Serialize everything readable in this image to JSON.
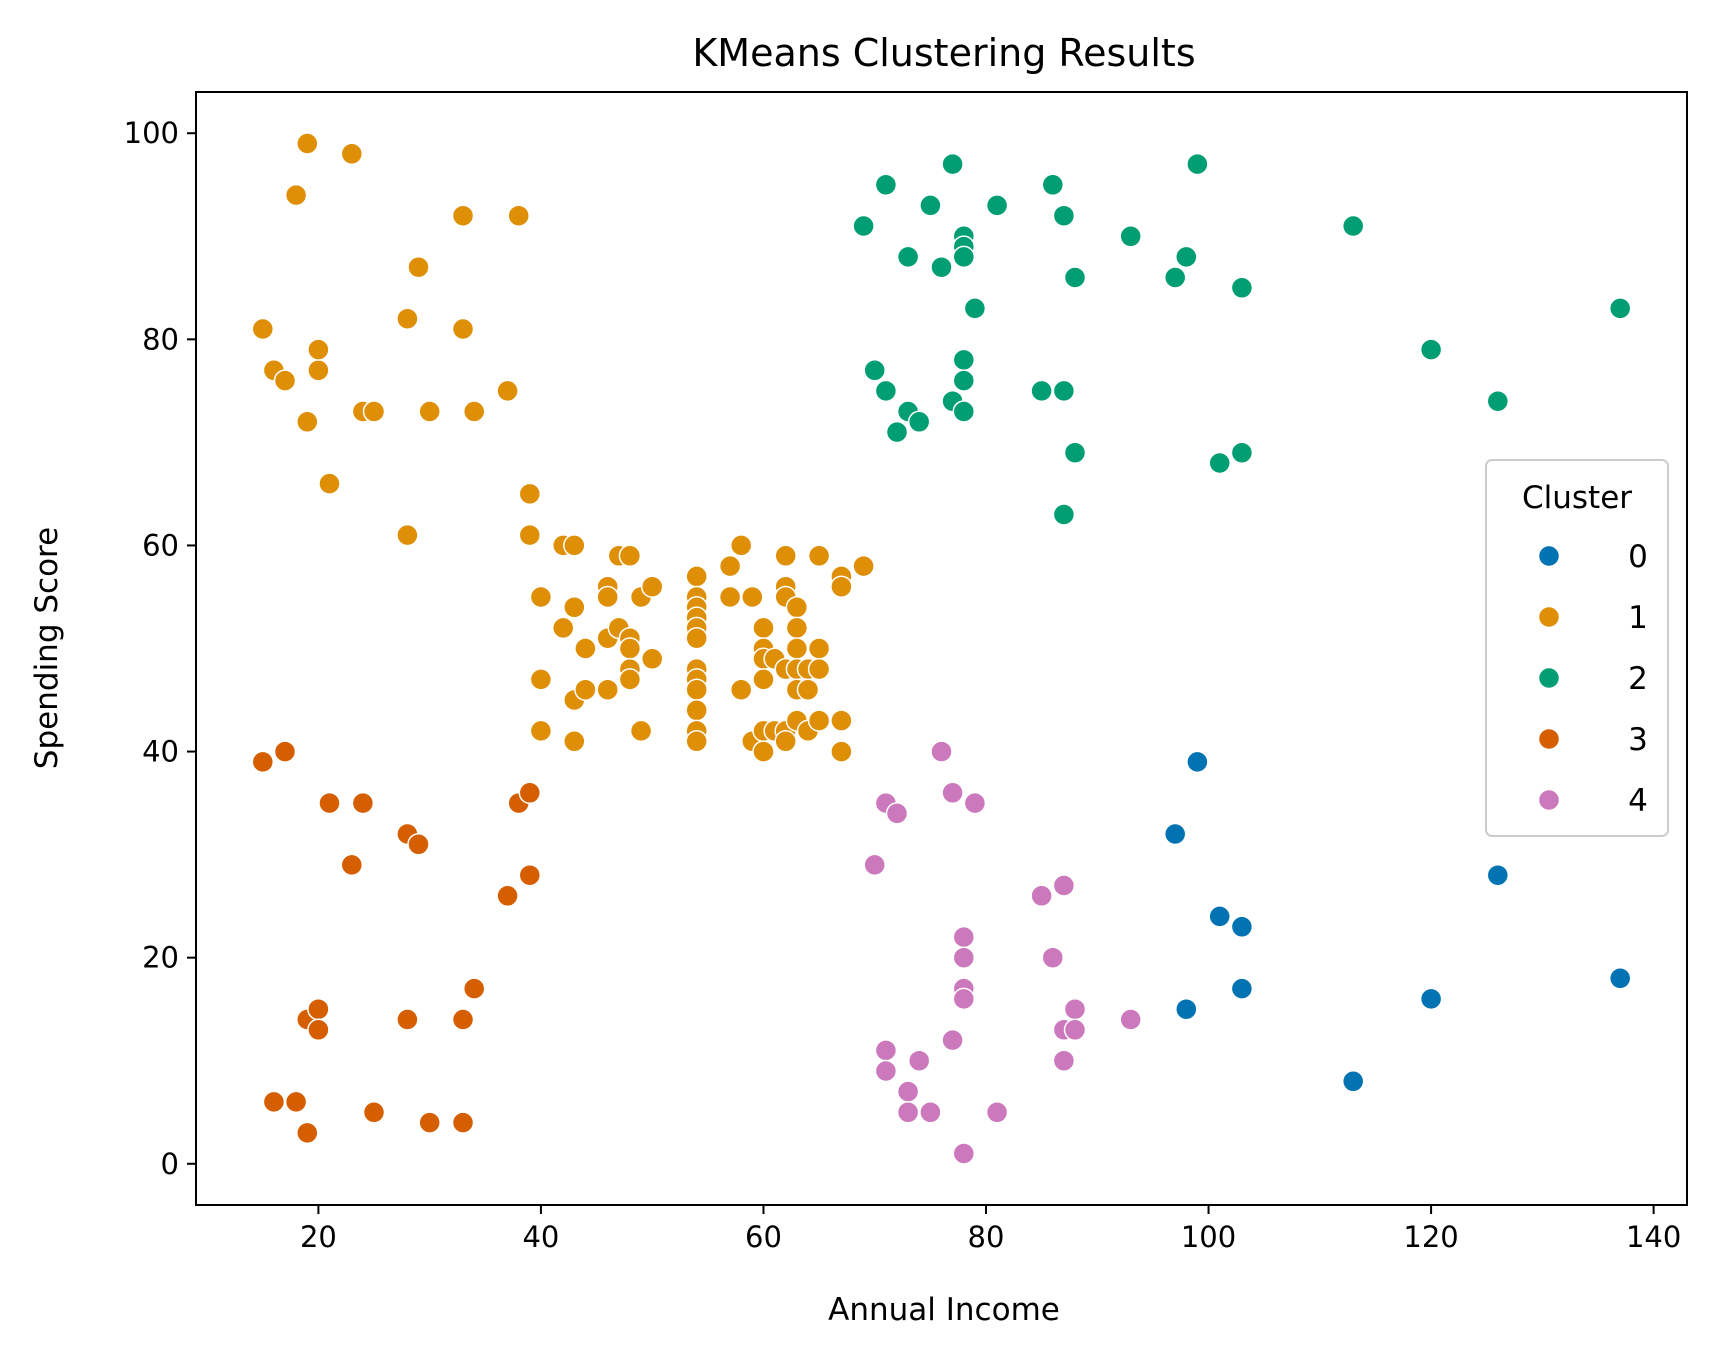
{
  "chart_data": {
    "type": "scatter",
    "title": "KMeans Clustering Results",
    "xlabel": "Annual Income",
    "ylabel": "Spending Score",
    "xlim": [
      9,
      143
    ],
    "ylim": [
      -4,
      104
    ],
    "xticks": [
      20,
      40,
      60,
      80,
      100,
      120,
      140
    ],
    "yticks": [
      0,
      20,
      40,
      60,
      80,
      100
    ],
    "grid": false,
    "legend": {
      "title": "Cluster",
      "placement": "right"
    },
    "series": [
      {
        "name": "0",
        "color": "#0173b2",
        "points": [
          [
            97,
            32
          ],
          [
            98,
            15
          ],
          [
            99,
            39
          ],
          [
            101,
            24
          ],
          [
            103,
            17
          ],
          [
            103,
            23
          ],
          [
            113,
            8
          ],
          [
            120,
            16
          ],
          [
            126,
            28
          ],
          [
            137,
            18
          ]
        ]
      },
      {
        "name": "1",
        "color": "#de8f05",
        "points": [
          [
            15,
            81
          ],
          [
            16,
            77
          ],
          [
            17,
            76
          ],
          [
            18,
            94
          ],
          [
            19,
            99
          ],
          [
            19,
            72
          ],
          [
            20,
            77
          ],
          [
            20,
            79
          ],
          [
            21,
            66
          ],
          [
            23,
            98
          ],
          [
            24,
            73
          ],
          [
            25,
            73
          ],
          [
            28,
            82
          ],
          [
            28,
            61
          ],
          [
            29,
            87
          ],
          [
            30,
            73
          ],
          [
            33,
            92
          ],
          [
            33,
            81
          ],
          [
            34,
            73
          ],
          [
            37,
            75
          ],
          [
            38,
            92
          ],
          [
            39,
            65
          ],
          [
            39,
            61
          ],
          [
            40,
            55
          ],
          [
            40,
            47
          ],
          [
            40,
            42
          ],
          [
            42,
            60
          ],
          [
            42,
            52
          ],
          [
            43,
            60
          ],
          [
            43,
            54
          ],
          [
            43,
            45
          ],
          [
            43,
            41
          ],
          [
            44,
            50
          ],
          [
            44,
            46
          ],
          [
            46,
            56
          ],
          [
            46,
            55
          ],
          [
            46,
            51
          ],
          [
            46,
            46
          ],
          [
            47,
            59
          ],
          [
            47,
            52
          ],
          [
            48,
            59
          ],
          [
            48,
            51
          ],
          [
            48,
            50
          ],
          [
            48,
            48
          ],
          [
            48,
            47
          ],
          [
            49,
            55
          ],
          [
            49,
            42
          ],
          [
            50,
            56
          ],
          [
            50,
            49
          ],
          [
            54,
            57
          ],
          [
            54,
            55
          ],
          [
            54,
            54
          ],
          [
            54,
            53
          ],
          [
            54,
            52
          ],
          [
            54,
            51
          ],
          [
            54,
            48
          ],
          [
            54,
            47
          ],
          [
            54,
            46
          ],
          [
            54,
            44
          ],
          [
            54,
            42
          ],
          [
            54,
            41
          ],
          [
            57,
            58
          ],
          [
            57,
            55
          ],
          [
            58,
            60
          ],
          [
            58,
            46
          ],
          [
            59,
            55
          ],
          [
            59,
            41
          ],
          [
            60,
            52
          ],
          [
            60,
            50
          ],
          [
            60,
            49
          ],
          [
            60,
            47
          ],
          [
            60,
            42
          ],
          [
            60,
            40
          ],
          [
            61,
            49
          ],
          [
            61,
            42
          ],
          [
            62,
            59
          ],
          [
            62,
            56
          ],
          [
            62,
            55
          ],
          [
            62,
            48
          ],
          [
            62,
            42
          ],
          [
            62,
            41
          ],
          [
            63,
            54
          ],
          [
            63,
            52
          ],
          [
            63,
            50
          ],
          [
            63,
            48
          ],
          [
            63,
            46
          ],
          [
            63,
            43
          ],
          [
            64,
            48
          ],
          [
            64,
            46
          ],
          [
            64,
            42
          ],
          [
            65,
            59
          ],
          [
            65,
            50
          ],
          [
            65,
            48
          ],
          [
            65,
            43
          ],
          [
            67,
            57
          ],
          [
            67,
            56
          ],
          [
            67,
            43
          ],
          [
            67,
            40
          ],
          [
            69,
            58
          ]
        ]
      },
      {
        "name": "2",
        "color": "#029e73",
        "points": [
          [
            69,
            91
          ],
          [
            70,
            77
          ],
          [
            71,
            95
          ],
          [
            71,
            75
          ],
          [
            72,
            71
          ],
          [
            73,
            88
          ],
          [
            73,
            73
          ],
          [
            74,
            72
          ],
          [
            75,
            93
          ],
          [
            76,
            87
          ],
          [
            77,
            97
          ],
          [
            77,
            74
          ],
          [
            78,
            90
          ],
          [
            78,
            89
          ],
          [
            78,
            88
          ],
          [
            78,
            78
          ],
          [
            78,
            76
          ],
          [
            78,
            73
          ],
          [
            79,
            83
          ],
          [
            81,
            93
          ],
          [
            85,
            75
          ],
          [
            86,
            95
          ],
          [
            87,
            92
          ],
          [
            87,
            75
          ],
          [
            87,
            63
          ],
          [
            88,
            86
          ],
          [
            88,
            69
          ],
          [
            93,
            90
          ],
          [
            97,
            86
          ],
          [
            98,
            88
          ],
          [
            99,
            97
          ],
          [
            101,
            68
          ],
          [
            103,
            85
          ],
          [
            103,
            69
          ],
          [
            113,
            91
          ],
          [
            120,
            79
          ],
          [
            126,
            74
          ],
          [
            137,
            83
          ]
        ]
      },
      {
        "name": "3",
        "color": "#d55e00",
        "points": [
          [
            15,
            39
          ],
          [
            16,
            6
          ],
          [
            17,
            40
          ],
          [
            18,
            6
          ],
          [
            19,
            14
          ],
          [
            19,
            3
          ],
          [
            20,
            15
          ],
          [
            20,
            13
          ],
          [
            21,
            35
          ],
          [
            23,
            29
          ],
          [
            24,
            35
          ],
          [
            25,
            5
          ],
          [
            28,
            32
          ],
          [
            28,
            14
          ],
          [
            29,
            31
          ],
          [
            30,
            4
          ],
          [
            33,
            14
          ],
          [
            33,
            4
          ],
          [
            34,
            17
          ],
          [
            37,
            26
          ],
          [
            38,
            35
          ],
          [
            39,
            36
          ],
          [
            39,
            28
          ]
        ]
      },
      {
        "name": "4",
        "color": "#cc78bc",
        "points": [
          [
            70,
            29
          ],
          [
            71,
            35
          ],
          [
            71,
            11
          ],
          [
            71,
            9
          ],
          [
            72,
            34
          ],
          [
            73,
            7
          ],
          [
            73,
            5
          ],
          [
            74,
            10
          ],
          [
            75,
            5
          ],
          [
            76,
            40
          ],
          [
            77,
            36
          ],
          [
            77,
            12
          ],
          [
            78,
            22
          ],
          [
            78,
            20
          ],
          [
            78,
            17
          ],
          [
            78,
            16
          ],
          [
            78,
            1
          ],
          [
            79,
            35
          ],
          [
            81,
            5
          ],
          [
            85,
            26
          ],
          [
            86,
            20
          ],
          [
            87,
            27
          ],
          [
            87,
            13
          ],
          [
            87,
            10
          ],
          [
            88,
            15
          ],
          [
            88,
            13
          ],
          [
            93,
            14
          ]
        ]
      }
    ]
  }
}
